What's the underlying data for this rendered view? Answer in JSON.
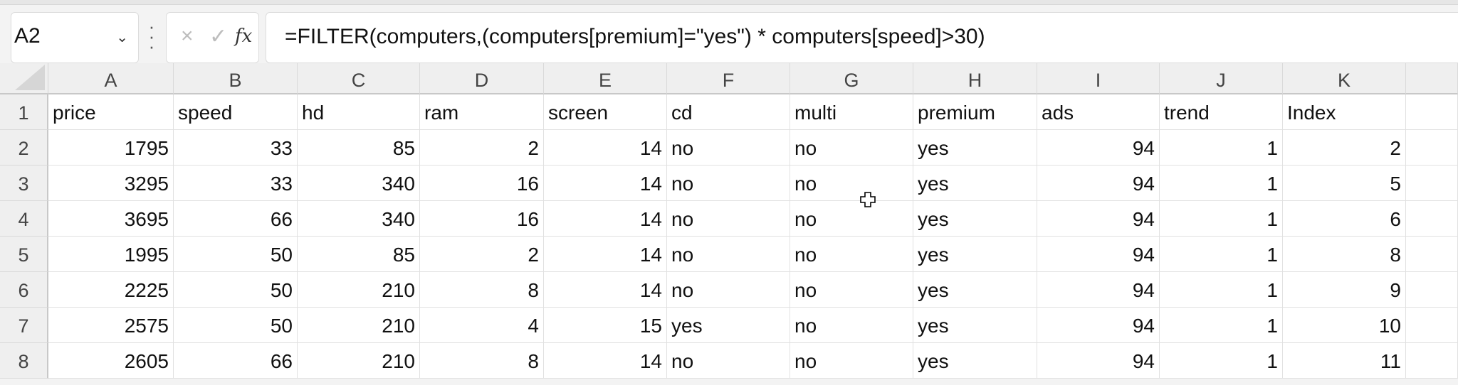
{
  "formula_bar": {
    "name_box": "A2",
    "cancel_icon": "×",
    "enter_icon": "✓",
    "fx_label": "fx",
    "formula": "=FILTER(computers,(computers[premium]=\"yes\") * computers[speed]>30)"
  },
  "columns": [
    "A",
    "B",
    "C",
    "D",
    "E",
    "F",
    "G",
    "H",
    "I",
    "J",
    "K",
    ""
  ],
  "rows": [
    "1",
    "2",
    "3",
    "4",
    "5",
    "6",
    "7",
    "8"
  ],
  "headers": [
    "price",
    "speed",
    "hd",
    "ram",
    "screen",
    "cd",
    "multi",
    "premium",
    "ads",
    "trend",
    "Index",
    ""
  ],
  "data": [
    [
      "1795",
      "33",
      "85",
      "2",
      "14",
      "no",
      "no",
      "yes",
      "94",
      "1",
      "2",
      ""
    ],
    [
      "3295",
      "33",
      "340",
      "16",
      "14",
      "no",
      "no",
      "yes",
      "94",
      "1",
      "5",
      ""
    ],
    [
      "3695",
      "66",
      "340",
      "16",
      "14",
      "no",
      "no",
      "yes",
      "94",
      "1",
      "6",
      ""
    ],
    [
      "1995",
      "50",
      "85",
      "2",
      "14",
      "no",
      "no",
      "yes",
      "94",
      "1",
      "8",
      ""
    ],
    [
      "2225",
      "50",
      "210",
      "8",
      "14",
      "no",
      "no",
      "yes",
      "94",
      "1",
      "9",
      ""
    ],
    [
      "2575",
      "50",
      "210",
      "4",
      "15",
      "yes",
      "no",
      "yes",
      "94",
      "1",
      "10",
      ""
    ],
    [
      "2605",
      "66",
      "210",
      "8",
      "14",
      "no",
      "no",
      "yes",
      "94",
      "1",
      "11",
      ""
    ]
  ],
  "numeric_columns": [
    true,
    true,
    true,
    true,
    true,
    false,
    false,
    false,
    true,
    true,
    true,
    false
  ],
  "colors": {
    "grid": "#e1e1e1",
    "header_bg": "#efefef"
  }
}
